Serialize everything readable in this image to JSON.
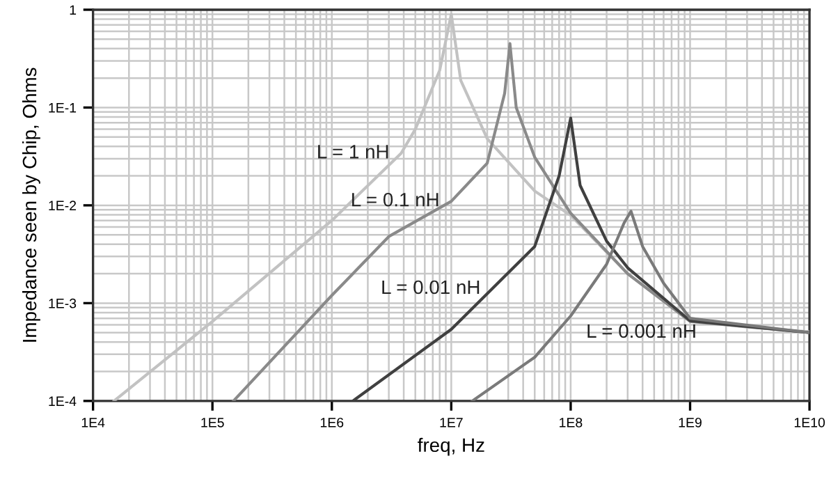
{
  "chart_data": {
    "type": "line",
    "xlabel": "freq, Hz",
    "ylabel": "Impedance seen by Chip, Ohms",
    "log": "xy",
    "grid": true,
    "xlim": [
      10000,
      10000000000
    ],
    "ylim": [
      0.0001,
      1
    ],
    "xticks": [
      {
        "value": 10000,
        "label": "1E4"
      },
      {
        "value": 100000,
        "label": "1E5"
      },
      {
        "value": 1000000,
        "label": "1E6"
      },
      {
        "value": 10000000,
        "label": "1E7"
      },
      {
        "value": 100000000,
        "label": "1E8"
      },
      {
        "value": 1000000000,
        "label": "1E9"
      },
      {
        "value": 10000000000,
        "label": "1E10"
      }
    ],
    "yticks": [
      {
        "value": 0.0001,
        "label": "1E-4"
      },
      {
        "value": 0.001,
        "label": "1E-3"
      },
      {
        "value": 0.01,
        "label": "1E-2"
      },
      {
        "value": 0.1,
        "label": "1E-1"
      },
      1
    ],
    "series": [
      {
        "name": "L = 1 nH",
        "color": "#c2c2c2",
        "x": [
          15000,
          100000,
          1000000,
          3800000,
          5000000,
          8000000,
          10000000,
          12000000,
          20000000,
          50000000,
          100000000,
          300000000,
          1000000000,
          3000000000,
          10000000000
        ],
        "values": [
          0.0001,
          0.00065,
          0.007,
          0.034,
          0.06,
          0.24,
          0.9,
          0.19,
          0.048,
          0.014,
          0.0079,
          0.002,
          0.00066,
          0.00057,
          0.00051
        ]
      },
      {
        "name": "L = 0.1 nH",
        "color": "#8a8a8a",
        "x": [
          150000,
          1000000,
          3000000,
          10000000,
          20000000,
          28000000,
          31000000,
          35000000,
          50000000,
          100000000,
          300000000,
          1000000000,
          10000000000
        ],
        "values": [
          0.0001,
          0.0012,
          0.0048,
          0.011,
          0.027,
          0.14,
          0.45,
          0.1,
          0.031,
          0.0083,
          0.002,
          0.00065,
          0.0005
        ]
      },
      {
        "name": "L = 0.01 nH",
        "color": "#404040",
        "x": [
          1500000,
          10000000,
          22000000,
          50000000,
          80000000,
          100000000,
          120000000,
          200000000,
          300000000,
          1000000000,
          10000000000
        ],
        "values": [
          0.0001,
          0.00054,
          0.0014,
          0.0038,
          0.02,
          0.078,
          0.016,
          0.0043,
          0.0023,
          0.00066,
          0.0005
        ]
      },
      {
        "name": "L = 0.001 nH",
        "color": "#7a7a7a",
        "x": [
          15000000,
          50000000,
          100000000,
          200000000,
          280000000,
          320000000,
          400000000,
          600000000,
          1000000000,
          10000000000
        ],
        "values": [
          0.0001,
          0.00028,
          0.00074,
          0.0025,
          0.0066,
          0.0087,
          0.0038,
          0.0016,
          0.0007,
          0.0005
        ]
      }
    ]
  }
}
